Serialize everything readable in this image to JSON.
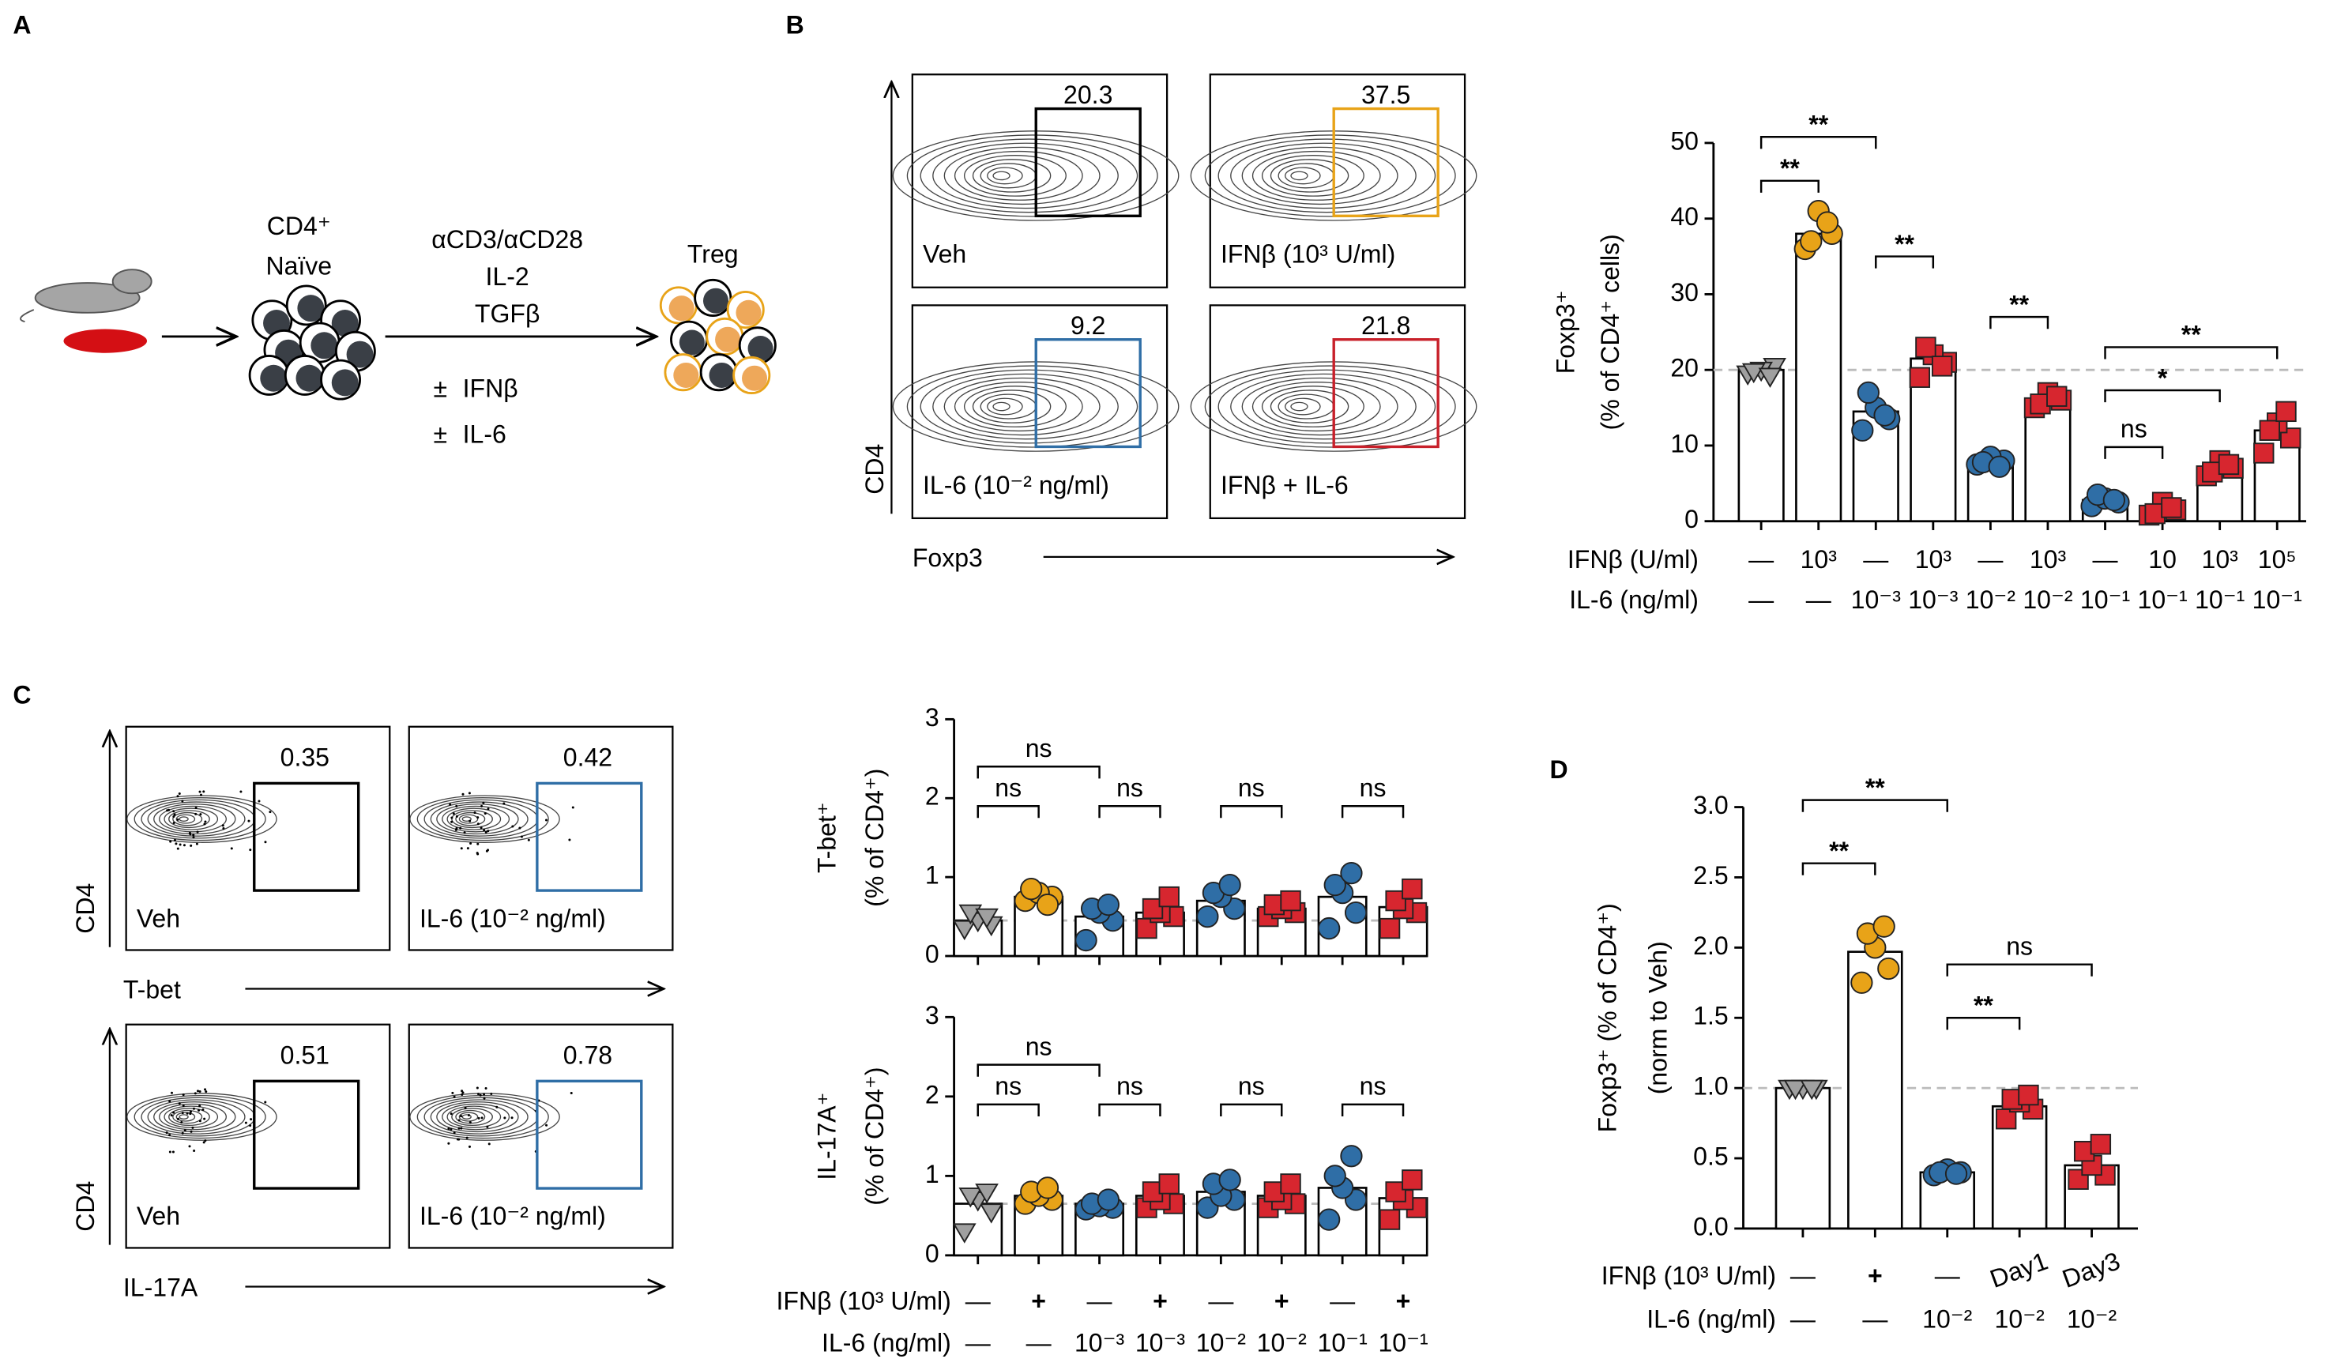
{
  "panel_labels": [
    "A",
    "B",
    "C",
    "D"
  ],
  "schematic": {
    "cd4": "CD4⁺",
    "naive": "Naïve",
    "stimuli": [
      "αCD3/αCD28",
      "IL-2",
      "TGFβ"
    ],
    "plus_minus": "±",
    "ifn": "IFNβ",
    "il6": "IL-6",
    "treg": "Treg"
  },
  "flow_b": {
    "x_label": "Foxp3",
    "y_label": "CD4",
    "plots": [
      {
        "label": "Veh",
        "gate": 20.3,
        "color": "#000000"
      },
      {
        "label": "IFNβ (10³ U/ml)",
        "gate": 37.5,
        "color": "#e8a318"
      },
      {
        "label": "IL-6 (10⁻² ng/ml)",
        "gate": 9.2,
        "color": "#2f6ea6"
      },
      {
        "label": "IFNβ + IL-6",
        "gate": 21.8,
        "color": "#c8202a"
      }
    ]
  },
  "flow_c": {
    "plots": [
      {
        "label": "Veh",
        "gate": 0.35,
        "color": "#000000",
        "x_label": "T-bet",
        "y_label": "CD4"
      },
      {
        "label": "IL-6 (10⁻² ng/ml)",
        "gate": 0.42,
        "color": "#2f6ea6"
      },
      {
        "label": "Veh",
        "gate": 0.51,
        "color": "#000000",
        "x_label": "IL-17A",
        "y_label": "CD4"
      },
      {
        "label": "IL-6 (10⁻² ng/ml)",
        "gate": 0.78,
        "color": "#2f6ea6"
      }
    ]
  },
  "chart_data": [
    {
      "type": "bar",
      "y_label": [
        "Foxp3⁺",
        "(% of CD4⁺ cells)"
      ],
      "ylim": [
        0,
        50
      ],
      "yticks": [
        0,
        10,
        20,
        30,
        40,
        50
      ],
      "values": [
        20,
        38,
        14.5,
        21.5,
        8,
        16,
        2.8,
        1.5,
        7,
        12
      ],
      "colors": [
        "#a0a0a0",
        "#e8a318",
        "#2f6ea6",
        "#d7262f",
        "#2f6ea6",
        "#d7262f",
        "#2f6ea6",
        "#d7262f",
        "#d7262f",
        "#d7262f"
      ],
      "markers": [
        "triangle",
        "circle",
        "circle",
        "square",
        "circle",
        "square",
        "circle",
        "square",
        "square",
        "square"
      ],
      "points": [
        [
          19.5,
          20.5,
          20,
          19.8,
          19.2
        ],
        [
          36,
          38,
          41,
          37,
          39.5
        ],
        [
          12,
          13.5,
          15,
          17,
          14
        ],
        [
          19,
          21,
          22,
          23,
          20.5
        ],
        [
          7.5,
          8,
          8.5,
          7.8,
          7.2
        ],
        [
          15,
          16,
          17,
          15.5,
          16.5
        ],
        [
          2,
          2.5,
          3,
          3.5,
          2.8
        ],
        [
          0.8,
          1.5,
          2.5,
          1,
          1.8
        ],
        [
          6,
          7,
          8,
          6.5,
          7.5
        ],
        [
          9,
          11,
          13,
          12,
          14.5
        ]
      ],
      "reference_line": true,
      "annotations": [
        {
          "text": "**",
          "between": [
            0,
            1
          ],
          "y": 45
        },
        {
          "text": "**",
          "between": [
            0,
            2
          ],
          "y": 50.8
        },
        {
          "text": "**",
          "between": [
            2,
            3
          ],
          "y": 35
        },
        {
          "text": "**",
          "between": [
            4,
            5
          ],
          "y": 27
        },
        {
          "text": "**",
          "between": [
            6,
            9
          ],
          "y": 23
        },
        {
          "text": "*",
          "between": [
            6,
            8
          ],
          "y": 17.3
        },
        {
          "text": "ns",
          "between": [
            6,
            7
          ],
          "y": 9.8
        }
      ],
      "rows": [
        {
          "name": "IFNβ (U/ml)",
          "values": [
            "—",
            "10³",
            "—",
            "10³",
            "—",
            "10³",
            "—",
            "10",
            "10³",
            "10⁵"
          ]
        },
        {
          "name": "IL-6 (ng/ml)",
          "values": [
            "—",
            "—",
            "10⁻³",
            "10⁻³",
            "10⁻²",
            "10⁻²",
            "10⁻¹",
            "10⁻¹",
            "10⁻¹",
            "10⁻¹"
          ]
        }
      ]
    },
    {
      "type": "bar",
      "y_label": [
        "T-bet⁺",
        "(% of CD4⁺)"
      ],
      "ylim": [
        0,
        3
      ],
      "yticks": [
        0,
        1,
        2,
        3
      ],
      "values": [
        0.45,
        0.75,
        0.5,
        0.55,
        0.7,
        0.6,
        0.75,
        0.62
      ],
      "colors": [
        "#a0a0a0",
        "#e8a318",
        "#2f6ea6",
        "#d7262f",
        "#2f6ea6",
        "#d7262f",
        "#2f6ea6",
        "#d7262f"
      ],
      "markers": [
        "triangle",
        "circle",
        "circle",
        "square",
        "circle",
        "square",
        "circle",
        "square"
      ],
      "points": [
        [
          0.35,
          0.4,
          0.45,
          0.55,
          0.5
        ],
        [
          0.7,
          0.75,
          0.8,
          0.85,
          0.65
        ],
        [
          0.2,
          0.45,
          0.55,
          0.6,
          0.65
        ],
        [
          0.35,
          0.5,
          0.55,
          0.6,
          0.75
        ],
        [
          0.5,
          0.6,
          0.75,
          0.8,
          0.9
        ],
        [
          0.5,
          0.55,
          0.6,
          0.65,
          0.7
        ],
        [
          0.35,
          0.55,
          0.8,
          0.9,
          1.05
        ],
        [
          0.35,
          0.55,
          0.6,
          0.7,
          0.85
        ]
      ],
      "reference_line": true,
      "annotations": [
        {
          "text": "ns",
          "between": [
            0,
            1
          ],
          "y": 1.9
        },
        {
          "text": "ns",
          "between": [
            0,
            2
          ],
          "y": 2.4
        },
        {
          "text": "ns",
          "between": [
            2,
            3
          ],
          "y": 1.9
        },
        {
          "text": "ns",
          "between": [
            4,
            5
          ],
          "y": 1.9
        },
        {
          "text": "ns",
          "between": [
            6,
            7
          ],
          "y": 1.9
        }
      ]
    },
    {
      "type": "bar",
      "y_label": [
        "IL-17A⁺",
        "(% of CD4⁺)"
      ],
      "ylim": [
        0,
        3
      ],
      "yticks": [
        0,
        1,
        2,
        3
      ],
      "values": [
        0.65,
        0.75,
        0.65,
        0.75,
        0.8,
        0.75,
        0.85,
        0.72
      ],
      "colors": [
        "#a0a0a0",
        "#e8a318",
        "#2f6ea6",
        "#d7262f",
        "#2f6ea6",
        "#d7262f",
        "#2f6ea6",
        "#d7262f"
      ],
      "markers": [
        "triangle",
        "circle",
        "circle",
        "square",
        "circle",
        "square",
        "circle",
        "square"
      ],
      "points": [
        [
          0.3,
          0.55,
          0.7,
          0.75,
          0.8
        ],
        [
          0.65,
          0.7,
          0.75,
          0.8,
          0.85
        ],
        [
          0.58,
          0.6,
          0.62,
          0.65,
          0.7
        ],
        [
          0.6,
          0.65,
          0.7,
          0.8,
          0.9
        ],
        [
          0.6,
          0.7,
          0.75,
          0.9,
          0.95
        ],
        [
          0.6,
          0.65,
          0.7,
          0.8,
          0.9
        ],
        [
          0.45,
          0.7,
          0.85,
          1.0,
          1.25
        ],
        [
          0.45,
          0.6,
          0.7,
          0.8,
          0.95
        ]
      ],
      "reference_line": true,
      "annotations": [
        {
          "text": "ns",
          "between": [
            0,
            1
          ],
          "y": 1.9
        },
        {
          "text": "ns",
          "between": [
            0,
            2
          ],
          "y": 2.4
        },
        {
          "text": "ns",
          "between": [
            2,
            3
          ],
          "y": 1.9
        },
        {
          "text": "ns",
          "between": [
            4,
            5
          ],
          "y": 1.9
        },
        {
          "text": "ns",
          "between": [
            6,
            7
          ],
          "y": 1.9
        }
      ],
      "rows": [
        {
          "name": "IFNβ (10³ U/ml)",
          "values": [
            "—",
            "+",
            "—",
            "+",
            "—",
            "+",
            "—",
            "+"
          ]
        },
        {
          "name": "IL-6 (ng/ml)",
          "values": [
            "—",
            "—",
            "10⁻³",
            "10⁻³",
            "10⁻²",
            "10⁻²",
            "10⁻¹",
            "10⁻¹"
          ]
        }
      ]
    },
    {
      "type": "bar",
      "y_label": [
        "Foxp3⁺  (% of CD4⁺)",
        "(norm to Veh)"
      ],
      "ylim": [
        0,
        3
      ],
      "yticks": [
        {
          "value": 0,
          "label": "0.0"
        },
        {
          "value": 0.5,
          "label": "0.5"
        },
        {
          "value": 1,
          "label": "1.0"
        },
        {
          "value": 1.5,
          "label": "1.5"
        },
        {
          "value": 2,
          "label": "2.0"
        },
        {
          "value": 2.5,
          "label": "2.5"
        },
        {
          "value": 3,
          "label": "3.0"
        }
      ],
      "values": [
        1.0,
        1.97,
        0.4,
        0.87,
        0.45
      ],
      "colors": [
        "#a0a0a0",
        "#e8a318",
        "#2f6ea6",
        "#d7262f",
        "#d7262f"
      ],
      "markers": [
        "triangle",
        "circle",
        "circle",
        "square",
        "square"
      ],
      "points": [
        [
          1,
          1,
          1,
          1,
          1
        ],
        [
          1.75,
          1.85,
          2.0,
          2.1,
          2.15
        ],
        [
          0.38,
          0.4,
          0.42,
          0.4,
          0.39
        ],
        [
          0.78,
          0.85,
          0.9,
          0.92,
          0.95
        ],
        [
          0.35,
          0.38,
          0.45,
          0.55,
          0.6
        ]
      ],
      "reference_line": true,
      "annotations": [
        {
          "text": "**",
          "between": [
            0,
            1
          ],
          "y": 2.6
        },
        {
          "text": "**",
          "between": [
            0,
            2
          ],
          "y": 3.05
        },
        {
          "text": "**",
          "between": [
            2,
            3
          ],
          "y": 1.5
        },
        {
          "text": "ns",
          "between": [
            2,
            4
          ],
          "y": 1.88
        }
      ],
      "rows": [
        {
          "name": "IFNβ (10³ U/ml)",
          "values": [
            "—",
            "+",
            "—",
            "Day1",
            "Day3"
          ]
        },
        {
          "name": "IL-6 (ng/ml)",
          "values": [
            "—",
            "—",
            "10⁻²",
            "10⁻²",
            "10⁻²"
          ]
        }
      ]
    }
  ]
}
